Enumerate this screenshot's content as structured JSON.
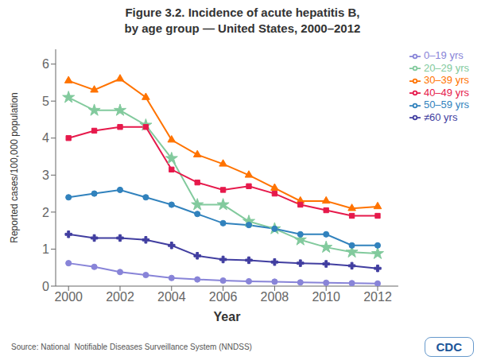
{
  "chart_data": {
    "type": "line",
    "title": "Figure 3.2. Incidence of acute hepatitis B,",
    "subtitle": "by age group — United States, 2000–2012",
    "x_label": "Year",
    "y_label": "Reported cases/100,000 population",
    "annotations": [
      "Source: National  Notifiable Diseases Surveillance System (NNDSS)",
      "CDC"
    ],
    "x": [
      2000,
      2001,
      2002,
      2003,
      2004,
      2005,
      2006,
      2007,
      2008,
      2009,
      2010,
      2011,
      2012
    ],
    "xlim": [
      1999.5,
      2012.8
    ],
    "xticks": [
      2000,
      2002,
      2004,
      2006,
      2008,
      2010,
      2012
    ],
    "ylim": [
      0,
      6.4
    ],
    "yticks": [
      0,
      1,
      2,
      3,
      4,
      5,
      6
    ],
    "grid": false,
    "legend": "right",
    "series": [
      {
        "name": "0–19 yrs",
        "marker": "circle",
        "values": [
          0.62,
          0.52,
          0.38,
          0.3,
          0.22,
          0.18,
          0.15,
          0.13,
          0.12,
          0.1,
          0.09,
          0.08,
          0.07
        ]
      },
      {
        "name": "20–29 yrs",
        "marker": "star",
        "values": [
          5.1,
          4.75,
          4.75,
          4.35,
          3.45,
          2.2,
          2.2,
          1.75,
          1.55,
          1.25,
          1.05,
          0.92,
          0.88
        ]
      },
      {
        "name": "30–39 yrs",
        "marker": "triangle",
        "values": [
          5.55,
          5.3,
          5.6,
          5.1,
          3.95,
          3.55,
          3.3,
          3.0,
          2.65,
          2.3,
          2.3,
          2.1,
          2.15
        ]
      },
      {
        "name": "40–49 yrs",
        "marker": "square",
        "values": [
          4.0,
          4.2,
          4.3,
          4.3,
          3.15,
          2.8,
          2.6,
          2.7,
          2.5,
          2.2,
          2.05,
          1.9,
          1.9
        ]
      },
      {
        "name": "50–59 yrs",
        "marker": "circle",
        "values": [
          2.4,
          2.5,
          2.6,
          2.4,
          2.2,
          1.95,
          1.7,
          1.65,
          1.55,
          1.4,
          1.4,
          1.1,
          1.1
        ]
      },
      {
        "name": "≠60 yrs",
        "marker": "plus",
        "values": [
          1.4,
          1.3,
          1.3,
          1.25,
          1.1,
          0.82,
          0.72,
          0.7,
          0.65,
          0.62,
          0.6,
          0.55,
          0.48
        ]
      }
    ]
  }
}
